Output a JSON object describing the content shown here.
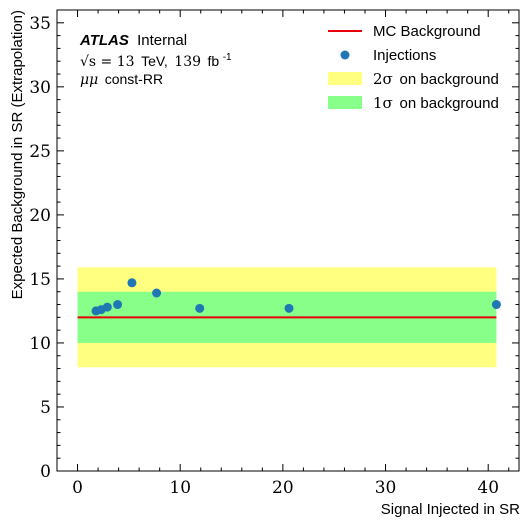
{
  "chart_data": {
    "type": "scatter",
    "xlabel": "Signal Injected in SR",
    "ylabel": "Expected Background in SR (Extrapolation)",
    "xlim": [
      -2,
      43
    ],
    "ylim": [
      0,
      36
    ],
    "xticks": [
      0,
      10,
      20,
      30,
      40
    ],
    "yticks": [
      0,
      5,
      10,
      15,
      20,
      25,
      30,
      35
    ],
    "xtick_labels": [
      "0",
      "10",
      "20",
      "30",
      "40"
    ],
    "ytick_labels": [
      "0",
      "5",
      "10",
      "15",
      "20",
      "25",
      "30",
      "35"
    ],
    "grid": false,
    "legend_position": "top-right",
    "annotation": {
      "atlas": "ATLAS",
      "internal": "Internal",
      "sqrt_s": "√s = 13",
      "tev": "TeV,",
      "lumi_value": "139",
      "lumi_unit": "fb",
      "lumi_exp": "-1",
      "channel": "μμ",
      "selection": "const-RR"
    },
    "background": {
      "name": "MC Background",
      "value": 12.0,
      "x_range": [
        0,
        40.8
      ],
      "color": "#e8000b"
    },
    "band_2sigma": {
      "name": "2σ on background",
      "sigma": "2σ",
      "label_rest": "on background",
      "low": 8.1,
      "high": 15.9,
      "x_range": [
        0,
        40.8
      ],
      "color": "#ffff80"
    },
    "band_1sigma": {
      "name": "1σ on background",
      "sigma": "1σ",
      "label_rest": "on background",
      "low": 10.0,
      "high": 14.0,
      "x_range": [
        0,
        40.8
      ],
      "color": "#88ff88"
    },
    "series": [
      {
        "name": "Injections",
        "color": "#1f77b4",
        "points": [
          {
            "x": 1.8,
            "y": 12.5
          },
          {
            "x": 2.3,
            "y": 12.6
          },
          {
            "x": 2.9,
            "y": 12.8
          },
          {
            "x": 3.9,
            "y": 13.0
          },
          {
            "x": 5.3,
            "y": 14.7
          },
          {
            "x": 7.7,
            "y": 13.9
          },
          {
            "x": 11.9,
            "y": 12.7
          },
          {
            "x": 20.6,
            "y": 12.7
          },
          {
            "x": 40.8,
            "y": 13.0
          }
        ]
      }
    ]
  }
}
